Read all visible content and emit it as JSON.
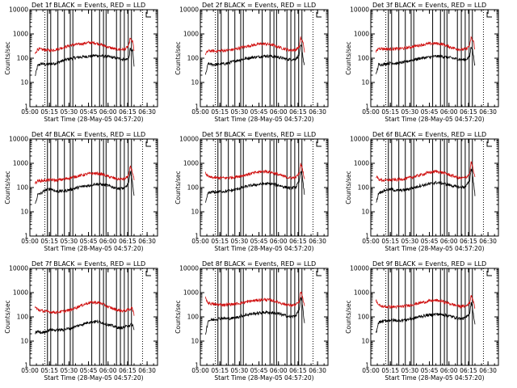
{
  "figure": {
    "panels": [
      {
        "title": "Det 1f BLACK = Events, RED = LLD",
        "xlabel": "Start Time (28-May-05 04:57:20)",
        "ylabel": "Counts/sec"
      },
      {
        "title": "Det 2f BLACK = Events, RED = LLD",
        "xlabel": "Start Time (28-May-05 04:57:20)",
        "ylabel": "Counts/sec"
      },
      {
        "title": "Det 3f BLACK = Events, RED = LLD",
        "xlabel": "Start Time (28-May-05 04:57:20)",
        "ylabel": "Counts/sec"
      },
      {
        "title": "Det 4f BLACK = Events, RED = LLD",
        "xlabel": "Start Time (28-May-05 04:57:20)",
        "ylabel": "Counts/sec"
      },
      {
        "title": "Det 5f BLACK = Events, RED = LLD",
        "xlabel": "Start Time (28-May-05 04:57:20)",
        "ylabel": "Counts/sec"
      },
      {
        "title": "Det 6f BLACK = Events, RED = LLD",
        "xlabel": "Start Time (28-May-05 04:57:20)",
        "ylabel": "Counts/sec"
      },
      {
        "title": "Det 7f BLACK = Events, RED = LLD",
        "xlabel": "Start Time (28-May-05 04:57:20)",
        "ylabel": "Counts/sec"
      },
      {
        "title": "Det 8f BLACK = Events, RED = LLD",
        "xlabel": "Start Time (28-May-05 04:57:20)",
        "ylabel": "Counts/sec"
      },
      {
        "title": "Det 9f BLACK = Events, RED = LLD",
        "xlabel": "Start Time (28-May-05 04:57:20)",
        "ylabel": "Counts/sec"
      }
    ]
  },
  "chart_data": {
    "type": "line",
    "layout": "3x3 grid",
    "y_scale": "log",
    "ylim": [
      1,
      10000
    ],
    "y_ticks": [
      1,
      10,
      100,
      1000,
      10000
    ],
    "y_tick_labels": [
      "1",
      "10",
      "100",
      "1000",
      "10000"
    ],
    "x_range": [
      "05:00",
      "06:38"
    ],
    "x_ticks": [
      "05:00",
      "05:15",
      "05:30",
      "05:45",
      "06:00",
      "06:15",
      "06:30"
    ],
    "x_ticks_minutes": [
      300,
      315,
      330,
      345,
      360,
      375,
      390
    ],
    "xlim_minutes": [
      300,
      398
    ],
    "series_colors": {
      "events": "#000000",
      "lld": "#d01010"
    },
    "dotted_lines_minutes": [
      311.5,
      386.5
    ],
    "vertical_lines_minutes": [
      313.5,
      316,
      321.5,
      326.5,
      331,
      333,
      347.5,
      353.5,
      356.5,
      358.5,
      366.5,
      369.5,
      372.5,
      375.5,
      378
    ],
    "panels": [
      {
        "name": "Det 1f",
        "series": [
          {
            "name": "Events",
            "x": [
              304,
              306,
              309,
              312,
              316,
              320,
              326,
              332,
              338,
              345,
              350,
              355,
              360,
              365,
              369,
              373,
              376,
              377,
              378,
              379,
              380
            ],
            "y": [
              18,
              50,
              60,
              55,
              58,
              62,
              82,
              100,
              110,
              120,
              130,
              125,
              115,
              105,
              95,
              88,
              98,
              240,
              210,
              200,
              45
            ]
          },
          {
            "name": "LLD",
            "x": [
              304,
              306,
              309,
              312,
              316,
              320,
              326,
              332,
              338,
              345,
              350,
              355,
              360,
              365,
              369,
              373,
              376,
              377,
              378,
              379,
              380
            ],
            "y": [
              150,
              240,
              230,
              220,
              210,
              230,
              280,
              350,
              380,
              440,
              430,
              360,
              290,
              240,
              230,
              235,
              330,
              680,
              520,
              480,
              210
            ]
          }
        ]
      },
      {
        "name": "Det 2f",
        "series": [
          {
            "name": "Events",
            "x": [
              304,
              306,
              309,
              312,
              316,
              320,
              326,
              332,
              338,
              345,
              350,
              355,
              360,
              365,
              369,
              373,
              376,
              377,
              378,
              379,
              380
            ],
            "y": [
              20,
              60,
              55,
              55,
              58,
              60,
              75,
              90,
              105,
              115,
              125,
              120,
              110,
              95,
              88,
              90,
              140,
              330,
              270,
              90,
              50
            ]
          },
          {
            "name": "LLD",
            "x": [
              304,
              306,
              309,
              312,
              316,
              320,
              326,
              332,
              338,
              345,
              350,
              355,
              360,
              365,
              369,
              373,
              376,
              377,
              378,
              379,
              380
            ],
            "y": [
              150,
              200,
              200,
              195,
              205,
              210,
              230,
              280,
              330,
              380,
              390,
              360,
              290,
              240,
              215,
              220,
              300,
              700,
              540,
              410,
              200
            ]
          }
        ]
      },
      {
        "name": "Det 3f",
        "series": [
          {
            "name": "Events",
            "x": [
              304,
              306,
              309,
              312,
              316,
              320,
              326,
              332,
              338,
              345,
              350,
              355,
              360,
              365,
              369,
              373,
              376,
              377,
              378,
              379,
              380
            ],
            "y": [
              20,
              55,
              55,
              60,
              65,
              60,
              70,
              85,
              100,
              110,
              120,
              118,
              108,
              95,
              88,
              88,
              120,
              300,
              250,
              110,
              50
            ]
          },
          {
            "name": "LLD",
            "x": [
              304,
              306,
              309,
              312,
              316,
              320,
              326,
              332,
              338,
              345,
              350,
              355,
              360,
              365,
              369,
              373,
              376,
              377,
              378,
              379,
              380
            ],
            "y": [
              180,
              260,
              250,
              240,
              240,
              245,
              260,
              300,
              350,
              400,
              410,
              380,
              300,
              250,
              230,
              235,
              330,
              720,
              560,
              480,
              220
            ]
          }
        ]
      },
      {
        "name": "Det 4f",
        "series": [
          {
            "name": "Events",
            "x": [
              304,
              306,
              309,
              312,
              316,
              320,
              326,
              332,
              338,
              345,
              350,
              355,
              360,
              365,
              369,
              373,
              376,
              377,
              378,
              379,
              380
            ],
            "y": [
              20,
              50,
              60,
              80,
              90,
              70,
              72,
              85,
              105,
              120,
              140,
              135,
              120,
              100,
              90,
              95,
              160,
              420,
              330,
              120,
              50
            ]
          },
          {
            "name": "LLD",
            "x": [
              304,
              306,
              309,
              312,
              316,
              320,
              326,
              332,
              338,
              345,
              350,
              355,
              360,
              365,
              369,
              373,
              376,
              377,
              378,
              379,
              380
            ],
            "y": [
              150,
              190,
              190,
              200,
              210,
              200,
              220,
              260,
              310,
              370,
              390,
              360,
              290,
              240,
              220,
              230,
              320,
              750,
              590,
              380,
              210
            ]
          }
        ]
      },
      {
        "name": "Det 5f",
        "series": [
          {
            "name": "Events",
            "x": [
              304,
              306,
              309,
              312,
              316,
              320,
              326,
              332,
              338,
              345,
              350,
              355,
              360,
              365,
              369,
              373,
              376,
              377,
              378,
              379,
              380
            ],
            "y": [
              22,
              60,
              65,
              65,
              70,
              70,
              80,
              100,
              120,
              135,
              145,
              140,
              125,
              105,
              95,
              100,
              180,
              480,
              360,
              130,
              50
            ]
          },
          {
            "name": "LLD",
            "x": [
              304,
              306,
              309,
              312,
              316,
              320,
              326,
              332,
              338,
              345,
              350,
              355,
              360,
              365,
              369,
              373,
              376,
              377,
              378,
              379,
              380
            ],
            "y": [
              400,
              280,
              260,
              250,
              250,
              250,
              270,
              310,
              370,
              440,
              470,
              420,
              340,
              280,
              250,
              260,
              380,
              920,
              720,
              420,
              230
            ]
          }
        ]
      },
      {
        "name": "Det 6f",
        "series": [
          {
            "name": "Events",
            "x": [
              304,
              306,
              309,
              312,
              316,
              320,
              326,
              332,
              338,
              345,
              350,
              355,
              360,
              365,
              369,
              373,
              376,
              377,
              378,
              379,
              380
            ],
            "y": [
              22,
              60,
              70,
              80,
              85,
              75,
              80,
              95,
              120,
              140,
              160,
              150,
              130,
              110,
              100,
              110,
              200,
              600,
              420,
              140,
              50
            ]
          },
          {
            "name": "LLD",
            "x": [
              304,
              306,
              309,
              312,
              316,
              320,
              326,
              332,
              338,
              345,
              350,
              355,
              360,
              365,
              369,
              373,
              376,
              377,
              378,
              379,
              380
            ],
            "y": [
              300,
              220,
              200,
              200,
              210,
              210,
              230,
              270,
              330,
              420,
              470,
              420,
              340,
              280,
              240,
              260,
              380,
              1150,
              800,
              430,
              240
            ]
          }
        ]
      },
      {
        "name": "Det 7f",
        "series": [
          {
            "name": "Events",
            "x": [
              304,
              306,
              309,
              312,
              316,
              320,
              326,
              332,
              338,
              345,
              350,
              355,
              360,
              365,
              369,
              373,
              376,
              377,
              378,
              379,
              380
            ],
            "y": [
              22,
              25,
              22,
              25,
              30,
              28,
              30,
              35,
              45,
              60,
              65,
              60,
              48,
              40,
              35,
              38,
              45,
              45,
              50,
              45,
              28
            ]
          },
          {
            "name": "LLD",
            "x": [
              304,
              306,
              309,
              312,
              316,
              320,
              326,
              332,
              338,
              345,
              350,
              355,
              360,
              365,
              369,
              373,
              376,
              377,
              378,
              379,
              380
            ],
            "y": [
              260,
              200,
              180,
              170,
              160,
              155,
              170,
              200,
              280,
              380,
              400,
              360,
              260,
              210,
              180,
              180,
              200,
              200,
              260,
              200,
              110
            ]
          }
        ]
      },
      {
        "name": "Det 8f",
        "series": [
          {
            "name": "Events",
            "x": [
              304,
              306,
              309,
              312,
              316,
              320,
              326,
              332,
              338,
              345,
              350,
              355,
              360,
              365,
              369,
              373,
              376,
              377,
              378,
              379,
              380
            ],
            "y": [
              20,
              70,
              75,
              80,
              90,
              85,
              90,
              110,
              130,
              145,
              155,
              150,
              135,
              115,
              100,
              110,
              200,
              600,
              440,
              160,
              50
            ]
          },
          {
            "name": "LLD",
            "x": [
              304,
              306,
              309,
              312,
              316,
              320,
              326,
              332,
              338,
              345,
              350,
              355,
              360,
              365,
              369,
              373,
              376,
              377,
              378,
              379,
              380
            ],
            "y": [
              600,
              380,
              340,
              320,
              320,
              320,
              340,
              380,
              440,
              500,
              520,
              480,
              400,
              330,
              300,
              310,
              420,
              1100,
              820,
              450,
              260
            ]
          }
        ]
      },
      {
        "name": "Det 9f",
        "series": [
          {
            "name": "Events",
            "x": [
              304,
              306,
              309,
              312,
              316,
              320,
              326,
              332,
              338,
              345,
              350,
              355,
              360,
              365,
              369,
              373,
              376,
              377,
              378,
              379,
              380
            ],
            "y": [
              20,
              60,
              65,
              70,
              75,
              70,
              75,
              85,
              105,
              120,
              130,
              125,
              110,
              95,
              85,
              90,
              150,
              380,
              280,
              110,
              45
            ]
          },
          {
            "name": "LLD",
            "x": [
              304,
              306,
              309,
              312,
              316,
              320,
              326,
              332,
              338,
              345,
              350,
              355,
              360,
              365,
              369,
              373,
              376,
              377,
              378,
              379,
              380
            ],
            "y": [
              500,
              300,
              270,
              260,
              260,
              260,
              280,
              320,
              380,
              450,
              480,
              440,
              360,
              300,
              270,
              280,
              380,
              780,
              600,
              420,
              220
            ]
          }
        ]
      }
    ]
  }
}
